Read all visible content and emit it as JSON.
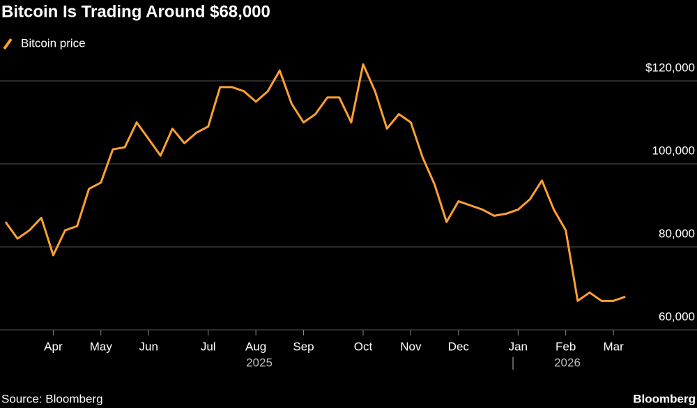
{
  "chart_data": {
    "type": "line",
    "title": "Bitcoin Is Trading Around $68,000",
    "source": "Source: Bloomberg",
    "brand": "Bloomberg",
    "categories": [
      null,
      null,
      null,
      null,
      "Apr",
      null,
      null,
      null,
      "May",
      null,
      null,
      null,
      "Jun",
      null,
      null,
      null,
      null,
      "Jul",
      null,
      null,
      null,
      "Aug",
      null,
      null,
      null,
      "Sep",
      null,
      null,
      null,
      null,
      "Oct",
      null,
      null,
      null,
      "Nov",
      null,
      null,
      null,
      "Dec",
      null,
      null,
      null,
      null,
      "Jan",
      null,
      null,
      null,
      "Feb",
      null,
      null,
      null,
      "Mar",
      null
    ],
    "year_labels": [
      "2025",
      "2026"
    ],
    "series": [
      {
        "name": "Bitcoin price",
        "color": "#ffa033",
        "values": [
          86000,
          82000,
          84000,
          87000,
          78000,
          84000,
          85000,
          94000,
          95500,
          103500,
          104000,
          110000,
          106000,
          102000,
          108500,
          105000,
          107500,
          109000,
          118500,
          118500,
          117500,
          115000,
          117500,
          122500,
          114500,
          110000,
          112000,
          116000,
          116000,
          110000,
          124000,
          117500,
          108500,
          112000,
          110000,
          101500,
          95000,
          86000,
          91000,
          90000,
          89000,
          87500,
          88000,
          89000,
          91500,
          96000,
          89000,
          84000,
          67000,
          69000,
          67000,
          67000,
          68000
        ]
      }
    ],
    "ylim": [
      60000,
      126000
    ],
    "yticks": [
      {
        "value": 60000,
        "label": "60,000"
      },
      {
        "value": 80000,
        "label": "80,000"
      },
      {
        "value": 100000,
        "label": "100,000"
      },
      {
        "value": 120000,
        "label": "$120,000"
      }
    ],
    "grid": true
  }
}
